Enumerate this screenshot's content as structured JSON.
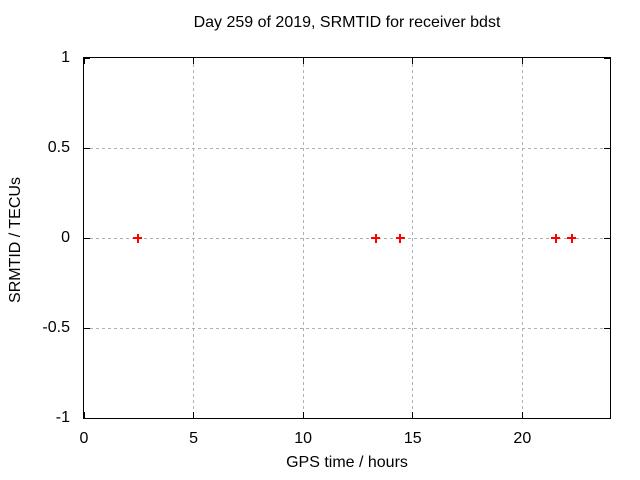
{
  "chart_data": {
    "type": "scatter",
    "title": "Day 259 of 2019, SRMTID for receiver bdst",
    "xlabel": "GPS time / hours",
    "ylabel": "SRMTID / TECUs",
    "xlim": [
      0,
      24
    ],
    "ylim": [
      -1,
      1
    ],
    "xticks": [
      0,
      5,
      10,
      15,
      20
    ],
    "xtick_labels": [
      "0",
      "5",
      "10",
      "15",
      "20"
    ],
    "yticks": [
      -1,
      -0.5,
      0,
      0.5,
      1
    ],
    "ytick_labels": [
      "-1",
      "-0.5",
      "0",
      "0.5",
      "1"
    ],
    "grid": true,
    "grid_style": "dashed",
    "legend": "none",
    "marker": "plus",
    "colors": {
      "marker": "#ff0000",
      "grid": "#b0b0b0",
      "border": "#000000",
      "text": "#000000",
      "background": "#ffffff"
    },
    "series": [
      {
        "name": "SRMTID",
        "points": [
          [
            2.46,
            0
          ],
          [
            13.31,
            0
          ],
          [
            14.42,
            0
          ],
          [
            21.52,
            0
          ],
          [
            22.25,
            0
          ]
        ]
      }
    ]
  }
}
